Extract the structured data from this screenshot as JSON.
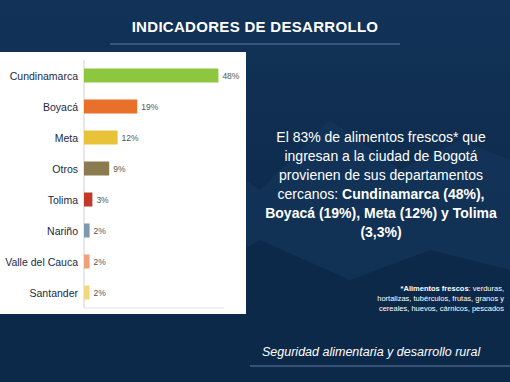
{
  "chart_data": {
    "type": "bar",
    "orientation": "horizontal",
    "categories": [
      "Cundinamarca",
      "Boyacá",
      "Meta",
      "Otros",
      "Tolima",
      "Nariño",
      "Valle del Cauca",
      "Santander"
    ],
    "values": [
      48,
      19,
      12,
      9,
      3,
      2,
      2,
      2
    ],
    "value_labels": [
      "48%",
      "19%",
      "12%",
      "9%",
      "3%",
      "2%",
      "2%",
      "2%"
    ],
    "colors": [
      "#8dc63f",
      "#e8702a",
      "#e8c33a",
      "#8c7b4f",
      "#c0392b",
      "#7f98ae",
      "#f0a07a",
      "#f2d77e"
    ],
    "xlim": [
      0,
      50
    ],
    "data_labels": true,
    "tick_labels": false,
    "grid": false
  },
  "page": {
    "header": "INDICADORES DE DESARROLLO",
    "summary": [
      {
        "text": "El 83% de alimentos frescos* que ingresan a la ciudad de Bogotá provienen de sus departamentos cercanos: ",
        "bold": false
      },
      {
        "text": "Cundinamarca (48%), Boyacá (19%), Meta (12%) y Tolima (3,3%)",
        "bold": true
      }
    ],
    "footnote": [
      {
        "text": "*Alimentos frescos",
        "bold": true
      },
      {
        "text": ": verduras, hortalizas, tubérculos, frutas, granos y cereales, huevos, cárnicos, pescados",
        "bold": false
      }
    ],
    "footer": "Seguridad alimentaria y desarrollo rural"
  }
}
